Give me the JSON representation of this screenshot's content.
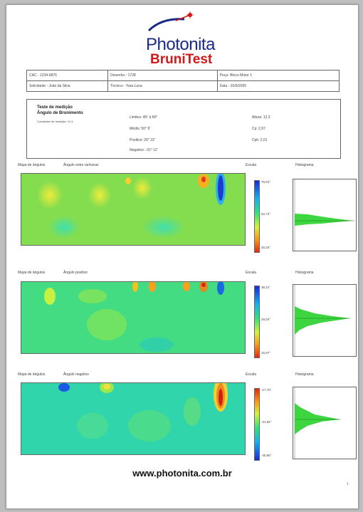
{
  "logo": {
    "brand": "Photonita",
    "product": "BruniTest"
  },
  "header": {
    "row1": [
      "CAC - 1234-9876",
      "Desenho - 1728",
      "Peça- Bloco Motor 1"
    ],
    "row2": [
      "Solicitante - João da Silva",
      "Técnico - Yara Luna",
      "Data - 20/9/2005"
    ]
  },
  "test": {
    "title": "Teste de medição",
    "subtitle": "Ângulo de Brunimento",
    "note": "Condições de medição: 11.4",
    "limites": "Limites: 45° à 60°",
    "medio": "Médio: 50° 9'",
    "positivo": "Positivo: 26° 22'",
    "negativo": "Negativo: -31° 12'",
    "altura": "Altura: 12,3",
    "cp": "Cp: 2,67",
    "cpk": "Cpk: 2,01"
  },
  "sections": [
    {
      "map_label": "Mapa de ângulos",
      "title": "Ângulo entre ranhuras",
      "scale_label": "Escala",
      "hist_label": "Histograma",
      "ticks": [
        "75,04°",
        "52,74°",
        "30,34°"
      ]
    },
    {
      "map_label": "Mapa de ângulos",
      "title": "Ângulo positivo",
      "scale_label": "Escala",
      "hist_label": "Histograma",
      "ticks": [
        "36,21°",
        "26,04°",
        "15,67°"
      ]
    },
    {
      "map_label": "Mapa de ângulos",
      "title": "Ângulo negativo",
      "scale_label": "Escala",
      "hist_label": "Histograma",
      "ticks": [
        "-17,76°",
        "-31,82°",
        "-45,86°"
      ]
    }
  ],
  "footer": {
    "url": "www.photonita.com.br",
    "page": "1"
  }
}
